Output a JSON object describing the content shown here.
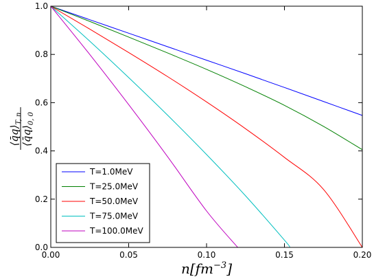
{
  "chart_data": {
    "type": "line",
    "xlabel": "n[fm^{-3}]",
    "ylabel": "<q̄q>_{T,n} / <q̄q>_{0,0}",
    "xlim": [
      0.0,
      0.2
    ],
    "ylim": [
      0.0,
      1.0
    ],
    "x_ticks": [
      "0.00",
      "0.05",
      "0.10",
      "0.15",
      "0.20"
    ],
    "y_ticks": [
      "0.0",
      "0.2",
      "0.4",
      "0.6",
      "0.8",
      "1.0"
    ],
    "grid": false,
    "legend_position": "lower-left",
    "series": [
      {
        "name": "T=1.0MeV",
        "color": "#0000ff",
        "x": [
          0.0,
          0.025,
          0.05,
          0.075,
          0.1,
          0.125,
          0.15,
          0.175,
          0.2
        ],
        "y": [
          1.0,
          0.944,
          0.888,
          0.832,
          0.776,
          0.72,
          0.663,
          0.605,
          0.547
        ]
      },
      {
        "name": "T=25.0MeV",
        "color": "#008000",
        "x": [
          0.0,
          0.025,
          0.05,
          0.075,
          0.1,
          0.125,
          0.15,
          0.175,
          0.2
        ],
        "y": [
          1.0,
          0.937,
          0.872,
          0.806,
          0.738,
          0.666,
          0.589,
          0.502,
          0.405
        ]
      },
      {
        "name": "T=50.0MeV",
        "color": "#ff0000",
        "x": [
          0.0,
          0.025,
          0.05,
          0.075,
          0.1,
          0.125,
          0.15,
          0.175,
          0.2
        ],
        "y": [
          1.0,
          0.905,
          0.808,
          0.708,
          0.603,
          0.492,
          0.373,
          0.241,
          0.0
        ]
      },
      {
        "name": "T=75.0MeV",
        "color": "#00bfbf",
        "x": [
          0.0,
          0.025,
          0.05,
          0.075,
          0.1,
          0.125,
          0.15,
          0.1535
        ],
        "y": [
          1.0,
          0.855,
          0.704,
          0.548,
          0.385,
          0.214,
          0.03,
          0.0
        ]
      },
      {
        "name": "T=100.0MeV",
        "color": "#bf00bf",
        "x": [
          0.0,
          0.025,
          0.05,
          0.075,
          0.1,
          0.12
        ],
        "y": [
          1.0,
          0.8,
          0.592,
          0.376,
          0.151,
          0.0
        ]
      }
    ]
  }
}
